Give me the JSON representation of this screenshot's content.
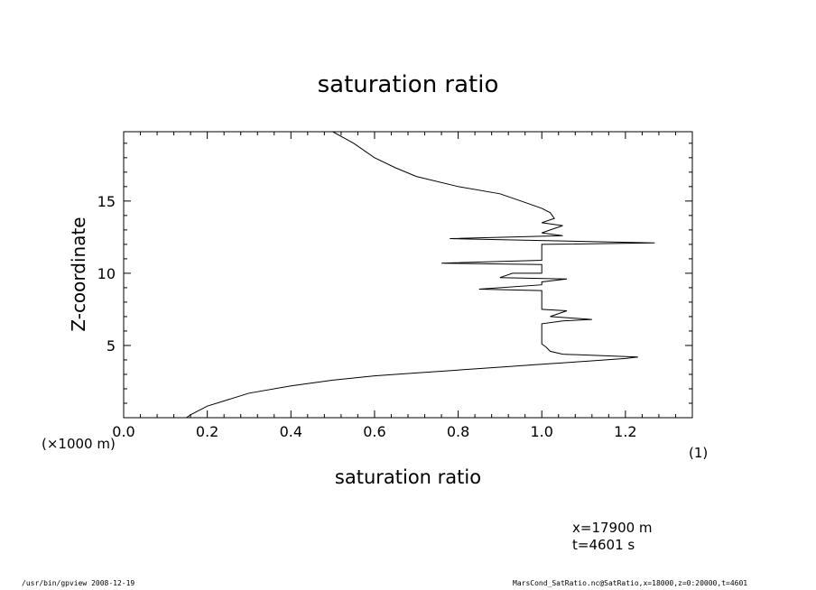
{
  "chart_data": {
    "type": "line",
    "title": "saturation ratio",
    "xlabel": "saturation ratio",
    "ylabel": "Z-coordinate",
    "x_unit_label": "(1)",
    "y_scale_label": "(×1000 m)",
    "xlim": [
      0.0,
      1.36
    ],
    "ylim": [
      0,
      19.8
    ],
    "x_ticks": [
      "0.0",
      "0.2",
      "0.4",
      "0.6",
      "0.8",
      "1.0",
      "1.2"
    ],
    "y_ticks": [
      "5",
      "10",
      "15"
    ],
    "grid": false,
    "series": [
      {
        "x": [
          0.15,
          0.16,
          0.2,
          0.3,
          0.4,
          0.5,
          0.6,
          0.7,
          0.8,
          0.9,
          1.0,
          1.1,
          1.2,
          1.23,
          1.05,
          1.02,
          1.01,
          1.0,
          1.0,
          1.0,
          1.05,
          1.12,
          1.02,
          1.06,
          1.0,
          1.0,
          1.0,
          1.0,
          0.85,
          1.0,
          1.0,
          1.06,
          0.9,
          0.93,
          1.0,
          1.0,
          0.76,
          1.0,
          1.0,
          1.0,
          1.27,
          0.78,
          1.05,
          1.0,
          1.02,
          1.05,
          1.0,
          1.03,
          1.02,
          1.0,
          0.95,
          0.9,
          0.8,
          0.7,
          0.65,
          0.6,
          0.55,
          0.5
        ],
        "y": [
          0.0,
          0.2,
          0.8,
          1.7,
          2.2,
          2.6,
          2.9,
          3.1,
          3.3,
          3.5,
          3.7,
          3.9,
          4.1,
          4.2,
          4.4,
          4.6,
          4.9,
          5.1,
          6.0,
          6.5,
          6.7,
          6.8,
          7.0,
          7.4,
          7.5,
          7.7,
          8.0,
          8.8,
          8.9,
          9.2,
          9.4,
          9.6,
          9.7,
          10.0,
          10.0,
          10.6,
          10.7,
          10.9,
          11.7,
          12.0,
          12.1,
          12.4,
          12.6,
          12.8,
          13.0,
          13.3,
          13.5,
          13.8,
          14.2,
          14.5,
          15.0,
          15.5,
          16.0,
          16.7,
          17.3,
          18.0,
          19.0,
          19.8
        ]
      }
    ]
  },
  "annotations": {
    "x_value": "x=17900 m",
    "t_value": "t=4601 s"
  },
  "footer": {
    "left": "/usr/bin/gpview   2008-12-19",
    "right": "MarsCond_SatRatio.nc@SatRatio,x=18000,z=0:20000,t=4601"
  }
}
